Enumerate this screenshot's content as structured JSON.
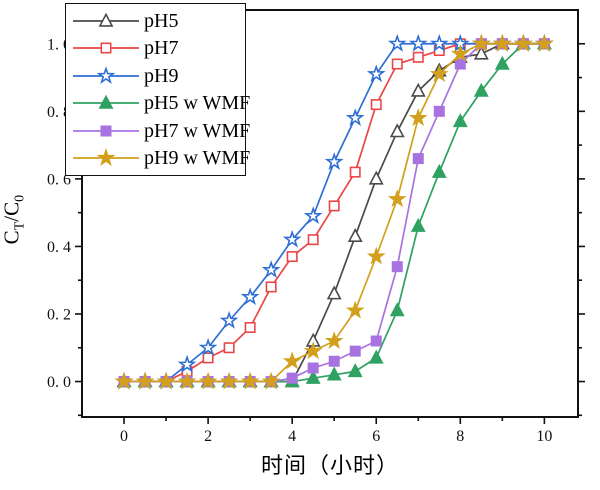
{
  "figure": {
    "background": "#ffffff",
    "axis_color": "#111111"
  },
  "chart_data": {
    "type": "line",
    "title": "",
    "xlabel": "时间（小时）",
    "ylabel": "C_T/C_0",
    "ylabel_parts": [
      {
        "text": "C",
        "sub": "T"
      },
      {
        "text": "/C",
        "sub": "0"
      }
    ],
    "grid": false,
    "legend_position": "top-left",
    "xlim": [
      -1,
      10.8
    ],
    "ylim": [
      -0.105,
      1.1
    ],
    "x_major_ticks": [
      0,
      2,
      4,
      6,
      8,
      10
    ],
    "x_major_tick_labels": [
      "0",
      "2",
      "4",
      "6",
      "8",
      "10"
    ],
    "x_minor_ticks": [
      1,
      3,
      5,
      7,
      9
    ],
    "y_major_ticks": [
      0.0,
      0.2,
      0.4,
      0.6,
      0.8,
      1.0
    ],
    "y_major_tick_labels": [
      "0. 0",
      "0. 2",
      "0. 4",
      "0. 6",
      "0. 8",
      "1. 0"
    ],
    "y_minor_ticks": [
      -0.1,
      0.1,
      0.3,
      0.5,
      0.7,
      0.9
    ],
    "x": [
      0,
      0.5,
      1,
      1.5,
      2,
      2.5,
      3,
      3.5,
      4,
      4.5,
      5,
      5.5,
      6,
      6.5,
      7,
      7.5,
      8,
      8.5,
      9,
      9.5,
      10
    ],
    "series": [
      {
        "name": "pH5",
        "color": "#4a4a4a",
        "marker": "triangle-open",
        "values": [
          0,
          0,
          0,
          0,
          0,
          0,
          0,
          0,
          0,
          0.12,
          0.26,
          0.43,
          0.6,
          0.74,
          0.86,
          0.92,
          0.96,
          0.97,
          1,
          1,
          1
        ]
      },
      {
        "name": "pH7",
        "color": "#e94747",
        "marker": "square-open",
        "values": [
          0,
          0,
          0,
          0.03,
          0.07,
          0.1,
          0.16,
          0.28,
          0.37,
          0.42,
          0.52,
          0.62,
          0.82,
          0.94,
          0.96,
          0.98,
          1,
          1,
          1,
          1,
          1
        ]
      },
      {
        "name": "pH9",
        "color": "#2f6fd3",
        "marker": "star-open",
        "values": [
          0,
          0,
          0,
          0.05,
          0.1,
          0.18,
          0.25,
          0.33,
          0.42,
          0.49,
          0.65,
          0.78,
          0.91,
          1,
          1,
          1,
          1,
          1,
          1,
          1,
          1
        ]
      },
      {
        "name": "pH5 w WMF",
        "color": "#2fa263",
        "marker": "triangle-filled",
        "values": [
          0,
          0,
          0,
          0,
          0,
          0,
          0,
          0,
          0,
          0.01,
          0.02,
          0.03,
          0.07,
          0.21,
          0.46,
          0.62,
          0.77,
          0.86,
          0.94,
          1,
          1
        ]
      },
      {
        "name": "pH7 w WMF",
        "color": "#a873e0",
        "marker": "square-filled",
        "values": [
          0,
          0,
          0,
          0,
          0,
          0,
          0,
          0,
          0.01,
          0.04,
          0.06,
          0.09,
          0.12,
          0.34,
          0.66,
          0.8,
          0.94,
          1,
          1,
          1,
          1
        ]
      },
      {
        "name": "pH9 w WMF",
        "color": "#d2a01d",
        "marker": "star-filled",
        "values": [
          0,
          0,
          0,
          0,
          0,
          0,
          0,
          0,
          0.06,
          0.09,
          0.12,
          0.21,
          0.37,
          0.54,
          0.78,
          0.91,
          0.97,
          1,
          1,
          1,
          1
        ]
      }
    ]
  }
}
